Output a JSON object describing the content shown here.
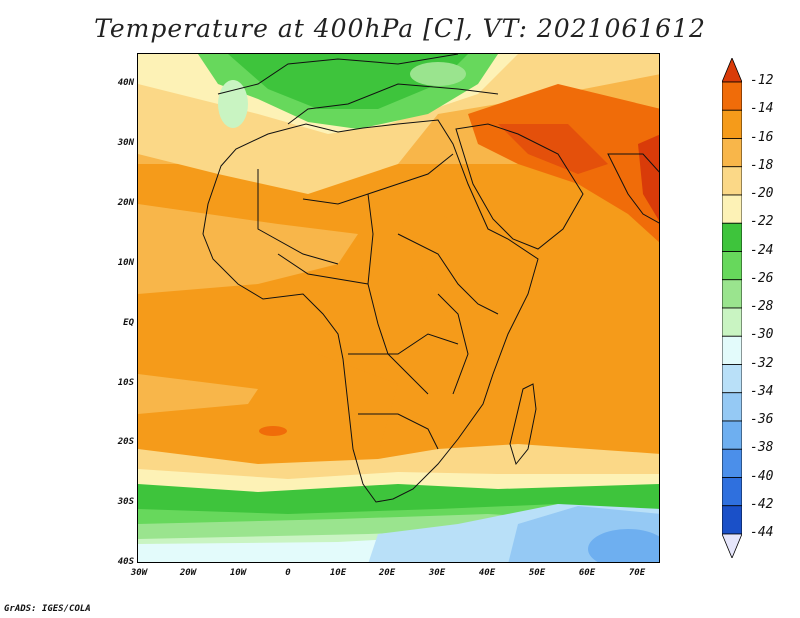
{
  "title": "Temperature at 400hPa [C], VT: 2021061612",
  "credit": "GrADS: IGES/COLA",
  "lat_ticks": [
    "40N",
    "30N",
    "20N",
    "10N",
    "EQ",
    "10S",
    "20S",
    "30S",
    "40S"
  ],
  "lon_ticks": [
    "30W",
    "20W",
    "10W",
    "0",
    "10E",
    "20E",
    "30E",
    "40E",
    "50E",
    "60E",
    "70E"
  ],
  "colorbar": {
    "labels": [
      "-12",
      "-14",
      "-16",
      "-18",
      "-20",
      "-22",
      "-24",
      "-26",
      "-28",
      "-30",
      "-32",
      "-34",
      "-36",
      "-38",
      "-40",
      "-42",
      "-44"
    ],
    "colors": [
      "#d93b09",
      "#f06c09",
      "#f59b1a",
      "#f8b64a",
      "#fbd887",
      "#fdf2b6",
      "#3ec43c",
      "#67d85c",
      "#9ae48e",
      "#c9f4c2",
      "#e3fbfb",
      "#b9e0f8",
      "#95c9f4",
      "#6eaff0",
      "#4b8fea",
      "#2f70de",
      "#1a50c8",
      "#0c2d98"
    ]
  }
}
